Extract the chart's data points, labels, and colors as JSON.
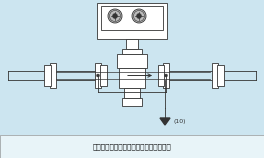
{
  "bg_color": "#cce5f0",
  "line_color": "#333333",
  "white": "#ffffff",
  "caption": "传感器在金属管道上安装时的接地示意图",
  "ground_label": "(10)",
  "fig_bg": "#cce5f0",
  "caption_bg": "#ddeef5",
  "figw": 2.64,
  "figh": 1.58,
  "dpi": 100
}
